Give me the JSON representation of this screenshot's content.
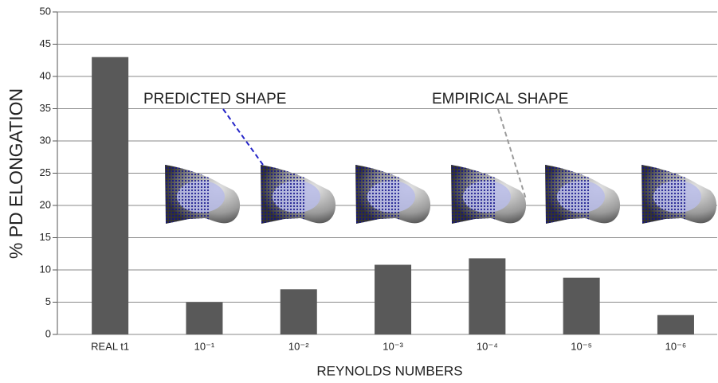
{
  "chart_data": {
    "type": "bar",
    "x_label": "REYNOLDS NUMBERS",
    "y_label": "% PD ELONGATION",
    "categories": [
      "REAL t1",
      "10⁻¹",
      "10⁻²",
      "10⁻³",
      "10⁻⁴",
      "10⁻⁵",
      "10⁻⁶"
    ],
    "values": [
      43,
      5,
      7,
      10.8,
      11.8,
      8.8,
      3
    ],
    "color": "#595959",
    "ylim": [
      0,
      50
    ],
    "yticks": [
      0,
      5,
      10,
      15,
      20,
      25,
      30,
      35,
      40,
      45,
      50
    ],
    "grid": true,
    "annotations": [
      {
        "text": "PREDICTED SHAPE",
        "color": "#2424c8"
      },
      {
        "text": "EMPIRICAL SHAPE",
        "color": "#9a9a9a"
      }
    ]
  }
}
